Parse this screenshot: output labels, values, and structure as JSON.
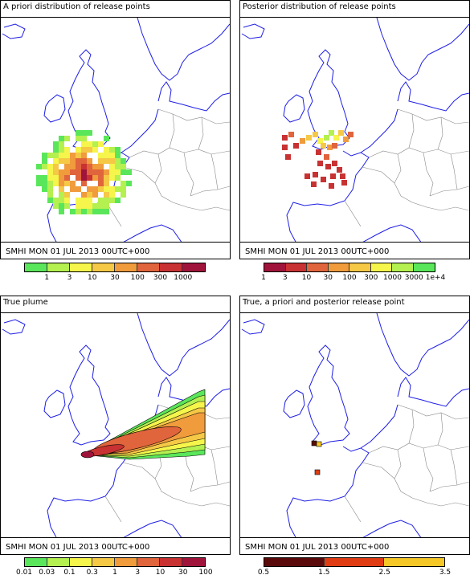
{
  "panels": [
    {
      "title": "A priori distribution of release points",
      "footer": "SMHI MON 01 JUL 2013 00UTC+000",
      "legend": {
        "colors": [
          "#5ae65a",
          "#b4f050",
          "#f5f54b",
          "#f5c846",
          "#f09b3c",
          "#e0643c",
          "#c83232",
          "#a0143c"
        ],
        "ticks": [
          "1",
          "3",
          "10",
          "30",
          "100",
          "300",
          "1000"
        ]
      }
    },
    {
      "title": "Posterior distribution of release points",
      "footer": "SMHI MON 01 JUL 2013 00UTC+000",
      "legend": {
        "colors": [
          "#a0143c",
          "#c83232",
          "#e0643c",
          "#f09b3c",
          "#f5c846",
          "#f5f54b",
          "#b4f050",
          "#5ae65a"
        ],
        "ticks": [
          "1",
          "3",
          "10",
          "30",
          "100",
          "300",
          "1000",
          "3000",
          "1e+4"
        ]
      }
    },
    {
      "title": "True plume",
      "footer": "SMHI MON 01 JUL 2013 00UTC+000",
      "legend": {
        "colors": [
          "#5ae65a",
          "#b4f050",
          "#f5f54b",
          "#f5c846",
          "#f09b3c",
          "#e0643c",
          "#c83232",
          "#a0143c"
        ],
        "ticks": [
          "0.01",
          "0.03",
          "0.1",
          "0.3",
          "1",
          "3",
          "10",
          "30",
          "100"
        ]
      }
    },
    {
      "title": "True, a priori and posterior release point",
      "footer": "SMHI MON 01 JUL 2013 00UTC+000",
      "legend": {
        "colors": [
          "#5a0a0a",
          "#e03c14",
          "#f5c828"
        ],
        "ticks": [
          "0.5",
          "1.5",
          "2.5",
          "3.5"
        ]
      }
    }
  ]
}
